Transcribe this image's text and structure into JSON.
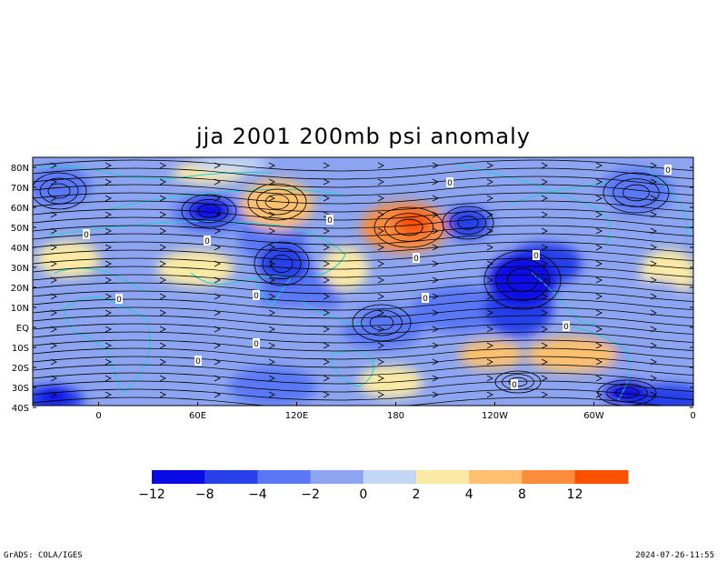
{
  "title": "jja 2001 200mb psi anomaly",
  "map": {
    "lat_labels": [
      "80N",
      "70N",
      "60N",
      "50N",
      "40N",
      "30N",
      "20N",
      "10N",
      "EQ",
      "10S",
      "20S",
      "30S",
      "40S"
    ],
    "lon_labels": [
      "0",
      "60E",
      "120E",
      "180",
      "120W",
      "60W",
      "0"
    ],
    "lat_range": [
      -40,
      85
    ],
    "lon_range": [
      -40,
      360
    ],
    "contour_labels": [
      "0",
      "0",
      "0",
      "0",
      "0",
      "0",
      "0",
      "0",
      "0",
      "0",
      "0",
      "0",
      "0",
      "0"
    ]
  },
  "colorbar": {
    "labels": [
      "−12",
      "−8",
      "−4",
      "−2",
      "0",
      "2",
      "4",
      "8",
      "12"
    ],
    "colors": [
      "#0a0ae6",
      "#2840ea",
      "#5a78f5",
      "#8da5f0",
      "#c4d6f6",
      "#fbeaa5",
      "#fcc070",
      "#fb8c3c",
      "#fa5000"
    ]
  },
  "footer": {
    "left": "GrADS: COLA/IGES",
    "right": "2024-07-26-11:55"
  }
}
